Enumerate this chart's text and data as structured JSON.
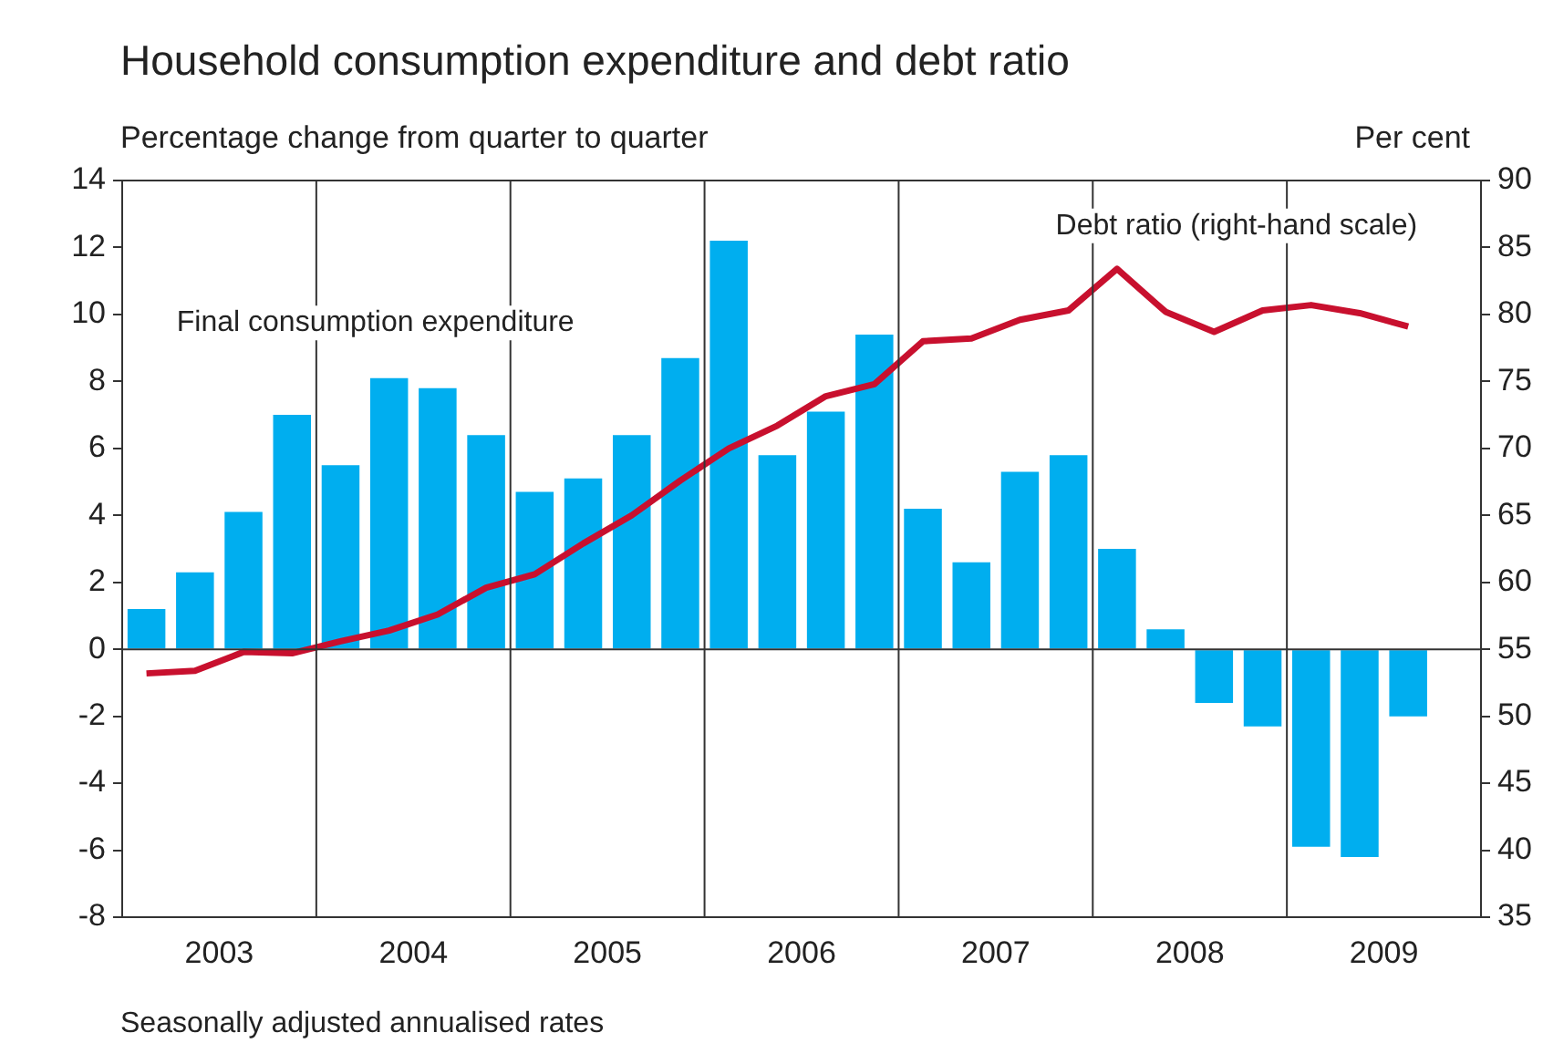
{
  "chart_data": {
    "type": "bar",
    "title": "Household consumption expenditure and debt ratio",
    "ylabel": "Percentage change from quarter to quarter",
    "y2label": "Per cent",
    "x": [
      2003.125,
      2003.375,
      2003.625,
      2003.875,
      2004.125,
      2004.375,
      2004.625,
      2004.875,
      2005.125,
      2005.375,
      2005.625,
      2005.875,
      2006.125,
      2006.375,
      2006.625,
      2006.875,
      2007.125,
      2007.375,
      2007.625,
      2007.875,
      2008.125,
      2008.375,
      2008.625,
      2008.875,
      2009.125,
      2009.375,
      2009.625
    ],
    "xlim": [
      2003,
      2010
    ],
    "xticks": [
      {
        "value": 2003.5,
        "label": "2003"
      },
      {
        "value": 2004.5,
        "label": "2004"
      },
      {
        "value": 2005.5,
        "label": "2005"
      },
      {
        "value": 2006.5,
        "label": "2006"
      },
      {
        "value": 2007.5,
        "label": "2007"
      },
      {
        "value": 2008.5,
        "label": "2008"
      },
      {
        "value": 2009.5,
        "label": "2009"
      }
    ],
    "series": [
      {
        "name": "Final consumption expenditure",
        "color": "#00aeef",
        "values": [
          1.2,
          2.3,
          4.1,
          7.0,
          5.5,
          8.1,
          7.8,
          6.4,
          4.7,
          5.1,
          6.4,
          8.7,
          12.2,
          5.8,
          7.1,
          9.4,
          4.2,
          2.6,
          5.3,
          5.8,
          3.0,
          0.6,
          -1.6,
          -2.3,
          -5.9,
          -6.2,
          -2.0
        ]
      },
      {
        "name": "Debt ratio (right-hand scale)",
        "type": "line",
        "axis": "y2",
        "color": "#c8102e",
        "values": [
          53.2,
          53.4,
          54.8,
          54.7,
          55.6,
          56.4,
          57.6,
          59.6,
          60.6,
          62.9,
          65.0,
          67.6,
          70.0,
          71.7,
          73.9,
          74.8,
          78.0,
          78.2,
          79.6,
          80.3,
          83.4,
          80.2,
          78.7,
          80.3,
          80.7,
          80.1,
          79.1
        ]
      }
    ],
    "ylim": [
      -8,
      14
    ],
    "yticks": [
      -8,
      -6,
      -4,
      -2,
      0,
      2,
      4,
      6,
      8,
      10,
      12,
      14
    ],
    "y2lim": [
      35,
      90
    ],
    "y2ticks": [
      35,
      40,
      45,
      50,
      55,
      60,
      65,
      70,
      75,
      80,
      85,
      90
    ],
    "ref_lines": [
      {
        "axis": "y",
        "value": 0
      },
      {
        "axis": "x",
        "value": 2004
      },
      {
        "axis": "x",
        "value": 2005
      },
      {
        "axis": "x",
        "value": 2006
      },
      {
        "axis": "x",
        "value": 2007
      },
      {
        "axis": "x",
        "value": 2008
      },
      {
        "axis": "x",
        "value": 2009
      }
    ],
    "grid": false,
    "legend": false,
    "marker": "none",
    "line_style": "solid",
    "annotations": [
      "Seasonally adjusted annualised rates"
    ]
  }
}
